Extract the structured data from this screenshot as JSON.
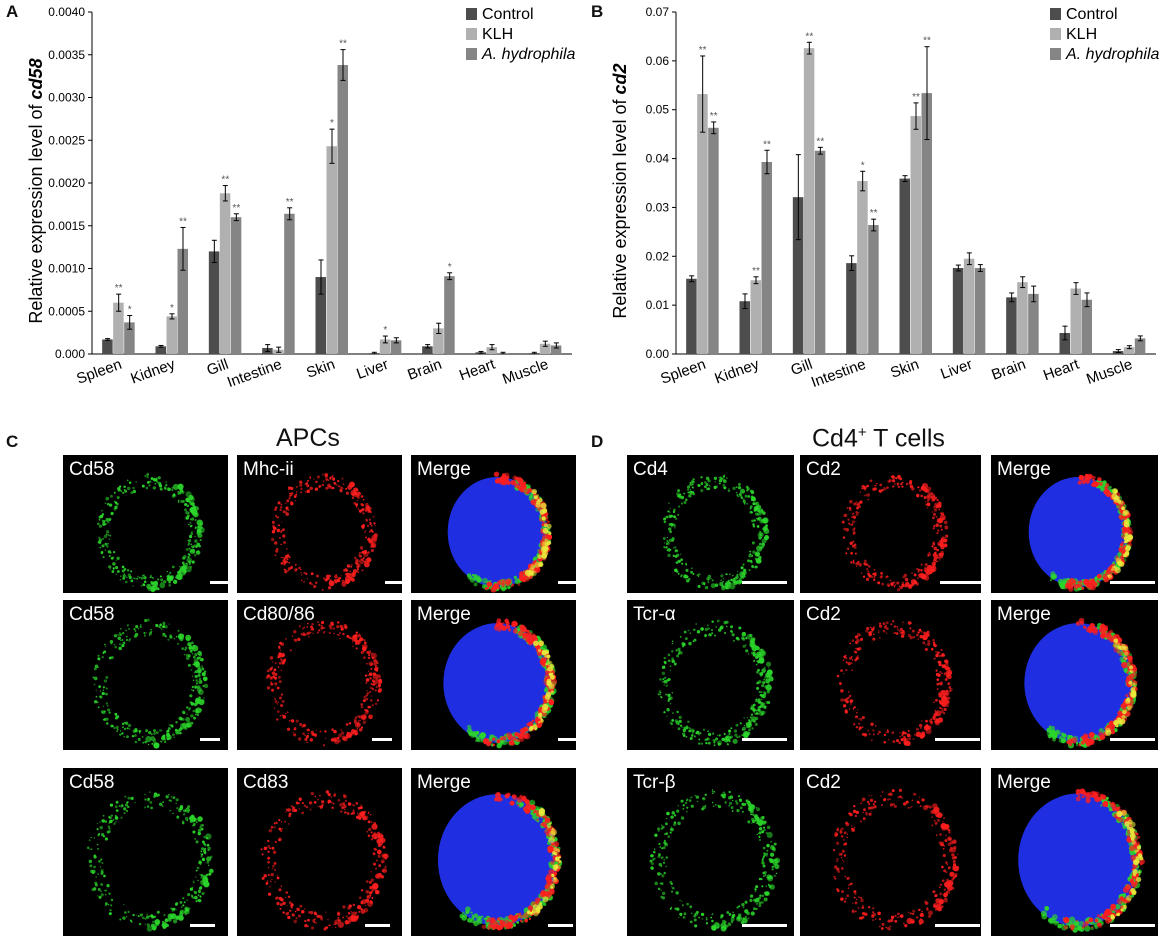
{
  "panels": {
    "A": {
      "letter": "A"
    },
    "B": {
      "letter": "B"
    },
    "C": {
      "letter": "C",
      "title": "APCs"
    },
    "D": {
      "letter": "D",
      "title_prefix": "Cd4",
      "title_sup": "+",
      "title_suffix": " T cells"
    }
  },
  "chart_data": [
    {
      "type": "bar",
      "panel": "A",
      "ylabel_prefix": "Relative expression level of ",
      "ylabel_gene": "cd58",
      "ylim": [
        0,
        0.004
      ],
      "yticks": [
        "0.000",
        "0.0005",
        "0.0010",
        "0.0015",
        "0.0020",
        "0.0025",
        "0.0030",
        "0.0035",
        "0.0040"
      ],
      "legend_position": "top-right",
      "categories": [
        "Spleen",
        "Kidney",
        "Gill",
        "Intestine",
        "Skin",
        "Liver",
        "Brain",
        "Heart",
        "Muscle"
      ],
      "series": [
        {
          "name": "Control",
          "color": "#4d4d4d",
          "values": [
            0.00017,
            9e-05,
            0.0012,
            7e-05,
            0.0009,
            1e-05,
            9e-05,
            2e-05,
            1e-05
          ],
          "errors": [
            1e-05,
            1e-05,
            0.00013,
            4e-05,
            0.0002,
            1e-05,
            2e-05,
            1e-05,
            1e-05
          ],
          "sig": [
            "",
            "",
            "",
            "",
            "",
            "",
            "",
            "",
            ""
          ]
        },
        {
          "name": "KLH",
          "color": "#b0b0b0",
          "values": [
            0.0006,
            0.00044,
            0.00188,
            5e-05,
            0.00243,
            0.00017,
            0.0003,
            8e-05,
            0.00012
          ],
          "errors": [
            0.0001,
            3e-05,
            9e-05,
            3e-05,
            0.0002,
            4e-05,
            6e-05,
            3e-05,
            3e-05
          ],
          "sig": [
            "**",
            "*",
            "**",
            "",
            "*",
            "*",
            "",
            "",
            ""
          ]
        },
        {
          "name": "A. hydrophila",
          "color": "#858585",
          "values": [
            0.00037,
            0.00123,
            0.0016,
            0.00164,
            0.00338,
            0.00016,
            0.00091,
            1e-05,
            0.0001
          ],
          "errors": [
            8e-05,
            0.00025,
            4e-05,
            7e-05,
            0.00018,
            3e-05,
            4e-05,
            1e-05,
            3e-05
          ],
          "sig": [
            "*",
            "**",
            "**",
            "**",
            "**",
            "",
            "*",
            "",
            ""
          ]
        }
      ]
    },
    {
      "type": "bar",
      "panel": "B",
      "ylabel_prefix": "Relative expression level of ",
      "ylabel_gene": "cd2",
      "ylim": [
        0,
        0.07
      ],
      "yticks": [
        "0.00",
        "0.01",
        "0.02",
        "0.03",
        "0.04",
        "0.05",
        "0.06",
        "0.07"
      ],
      "legend_position": "top-right",
      "categories": [
        "Spleen",
        "Kidney",
        "Gill",
        "Intestine",
        "Skin",
        "Liver",
        "Brain",
        "Heart",
        "Muscle"
      ],
      "series": [
        {
          "name": "Control",
          "color": "#4d4d4d",
          "values": [
            0.0154,
            0.0108,
            0.0321,
            0.0186,
            0.0359,
            0.0176,
            0.0116,
            0.0043,
            0.0006
          ],
          "errors": [
            0.0006,
            0.0015,
            0.0087,
            0.0015,
            0.0006,
            0.0006,
            0.0009,
            0.0014,
            0.0003
          ],
          "sig": [
            "",
            "",
            "",
            "",
            "",
            "",
            "",
            "",
            ""
          ]
        },
        {
          "name": "KLH",
          "color": "#b0b0b0",
          "values": [
            0.0532,
            0.0151,
            0.0626,
            0.0354,
            0.0487,
            0.0195,
            0.0147,
            0.0134,
            0.0014
          ],
          "errors": [
            0.0078,
            0.0007,
            0.0012,
            0.002,
            0.0027,
            0.0012,
            0.0011,
            0.0012,
            0.0003
          ],
          "sig": [
            "**",
            "**",
            "**",
            "*",
            "**",
            "",
            "",
            "",
            ""
          ]
        },
        {
          "name": "A. hydrophila",
          "color": "#858585",
          "values": [
            0.0463,
            0.0393,
            0.0416,
            0.0264,
            0.0534,
            0.0176,
            0.0123,
            0.0111,
            0.0032
          ],
          "errors": [
            0.0012,
            0.0024,
            0.0007,
            0.0012,
            0.0095,
            0.0007,
            0.0016,
            0.0014,
            0.0005
          ],
          "sig": [
            "**",
            "**",
            "**",
            "**",
            "**",
            "",
            "",
            "",
            ""
          ]
        }
      ]
    }
  ],
  "micrographs": {
    "C": [
      [
        "Cd58",
        "Mhc-ii",
        "Merge"
      ],
      [
        "Cd58",
        "Cd80/86",
        "Merge"
      ],
      [
        "Cd58",
        "Cd83",
        "Merge"
      ]
    ],
    "D": [
      [
        "Cd4",
        "Cd2",
        "Merge"
      ],
      [
        "Tcr-α",
        "Cd2",
        "Merge"
      ],
      [
        "Tcr-β",
        "Cd2",
        "Merge"
      ]
    ]
  }
}
